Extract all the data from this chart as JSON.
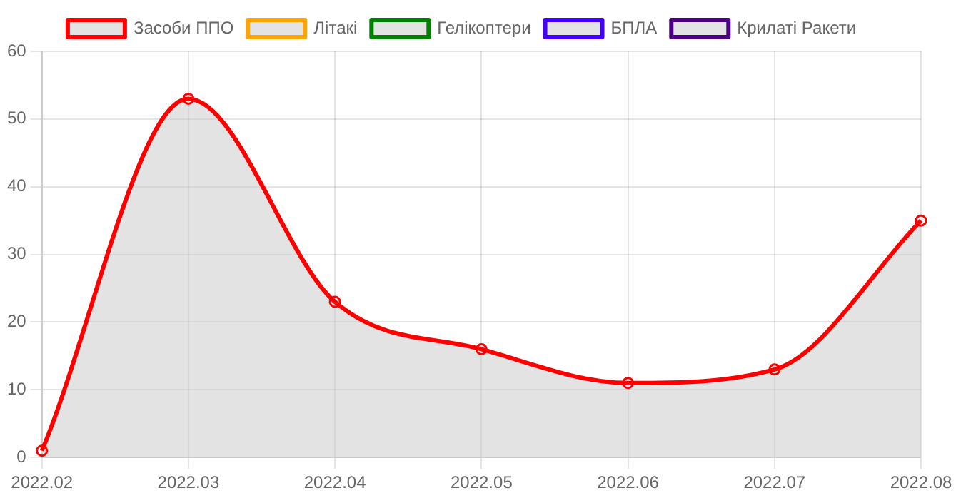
{
  "chart_data": {
    "type": "area",
    "categories": [
      "2022.02",
      "2022.03",
      "2022.04",
      "2022.05",
      "2022.06",
      "2022.07",
      "2022.08"
    ],
    "series": [
      {
        "name": "Засоби ППО",
        "color": "#ff0000",
        "values": [
          1,
          53,
          23,
          16,
          11,
          13,
          35
        ]
      },
      {
        "name": "Літакі",
        "color": "#ffa500",
        "values": [
          null,
          null,
          null,
          null,
          null,
          null,
          null
        ]
      },
      {
        "name": "Гелікоптери",
        "color": "#008000",
        "values": [
          null,
          null,
          null,
          null,
          null,
          null,
          null
        ]
      },
      {
        "name": "БПЛА",
        "color": "#4400ff",
        "values": [
          null,
          null,
          null,
          null,
          null,
          null,
          null
        ]
      },
      {
        "name": "Крилаті Ракети",
        "color": "#4b0082",
        "values": [
          null,
          null,
          null,
          null,
          null,
          null,
          null
        ]
      }
    ],
    "ylim": [
      0,
      60
    ],
    "yticks": [
      0,
      10,
      20,
      30,
      40,
      50,
      60
    ],
    "grid": true,
    "legend": "top",
    "marker": "circle",
    "line_style": "solid"
  }
}
